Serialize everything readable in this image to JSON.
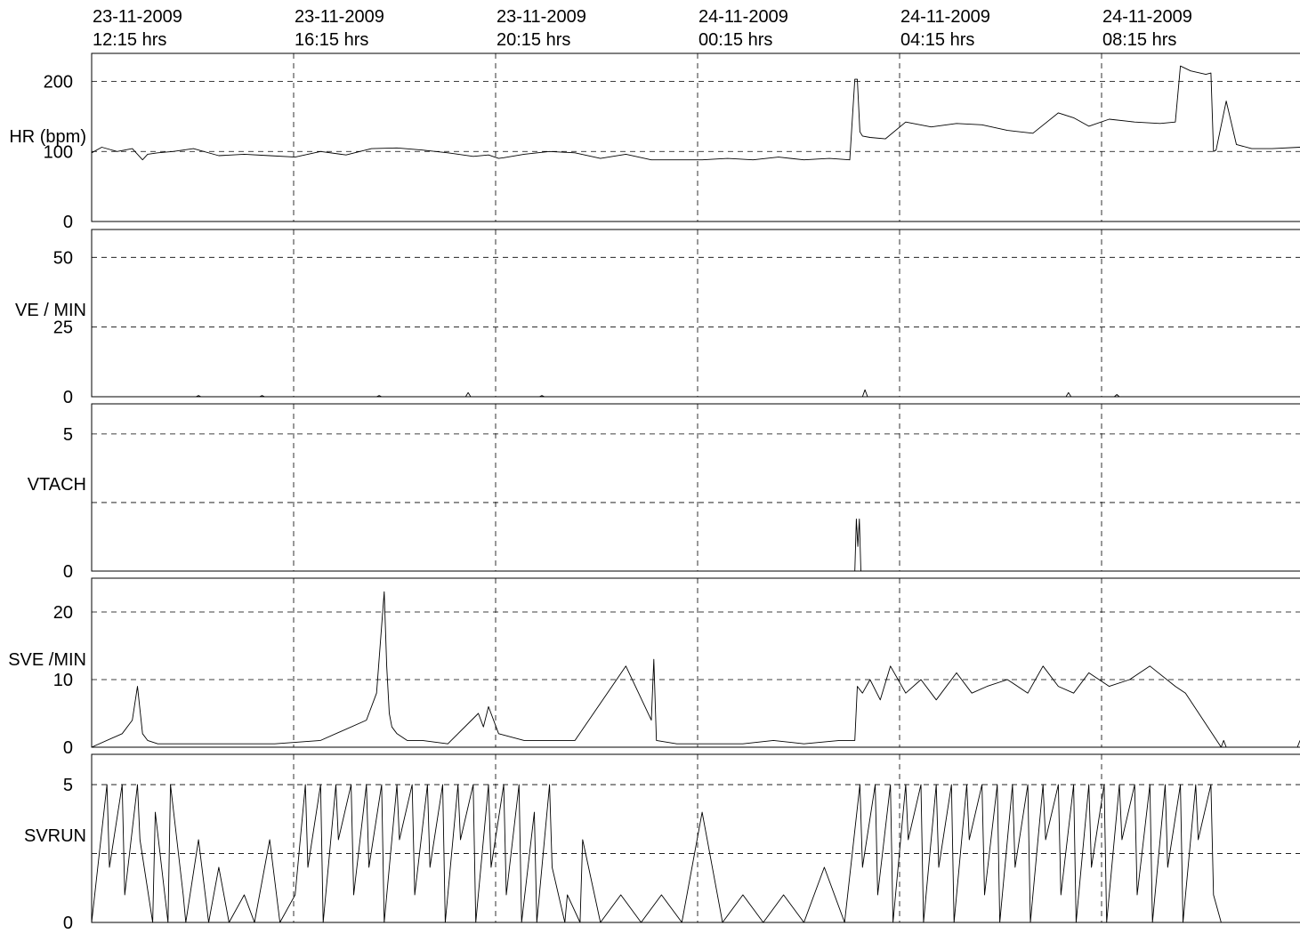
{
  "chart_data": {
    "type": "line",
    "time_axis": {
      "position": "top",
      "grid": "dashed vertical",
      "ticks": [
        {
          "date": "23-11-2009",
          "time": "12:15 hrs"
        },
        {
          "date": "23-11-2009",
          "time": "16:15 hrs"
        },
        {
          "date": "23-11-2009",
          "time": "20:15 hrs"
        },
        {
          "date": "24-11-2009",
          "time": "00:15 hrs"
        },
        {
          "date": "24-11-2009",
          "time": "04:15 hrs"
        },
        {
          "date": "24-11-2009",
          "time": "08:15 hrs"
        }
      ],
      "xlim_hours": [
        0,
        23.75
      ]
    },
    "panels": [
      {
        "label": "HR (bpm)",
        "ylim": [
          0,
          240
        ],
        "yticks": [
          0,
          100,
          200
        ],
        "grid": "dashed horizontal at 100, 200",
        "series": {
          "x_hours": [
            0,
            0.2,
            0.5,
            0.8,
            1.0,
            1.1,
            1.3,
            1.6,
            2.0,
            2.5,
            3.0,
            3.5,
            4.0,
            4.5,
            5.0,
            5.5,
            6.0,
            6.5,
            7.0,
            7.5,
            7.8,
            8.0,
            8.1,
            8.5,
            9.0,
            9.5,
            10.0,
            10.5,
            11.0,
            11.5,
            12.0,
            12.5,
            13.0,
            13.5,
            14.0,
            14.5,
            14.9,
            15.0,
            15.05,
            15.1,
            15.15,
            15.3,
            15.6,
            16.0,
            16.5,
            17.0,
            17.5,
            18.0,
            18.5,
            19.0,
            19.3,
            19.6,
            20.0,
            20.5,
            21.0,
            21.3,
            21.4,
            21.6,
            21.9,
            22.0,
            22.05,
            22.1,
            22.3,
            22.5,
            22.8,
            23.2,
            23.75
          ],
          "y": [
            98,
            106,
            100,
            104,
            88,
            96,
            98,
            100,
            104,
            94,
            96,
            94,
            92,
            100,
            95,
            104,
            105,
            102,
            98,
            93,
            95,
            90,
            91,
            96,
            100,
            98,
            90,
            96,
            88,
            88,
            88,
            90,
            88,
            92,
            88,
            90,
            88,
            203,
            203,
            128,
            122,
            120,
            118,
            142,
            135,
            140,
            138,
            130,
            126,
            155,
            148,
            136,
            146,
            142,
            140,
            142,
            222,
            215,
            210,
            212,
            100,
            102,
            172,
            110,
            104,
            104,
            106
          ]
        }
      },
      {
        "label": "VE / MIN",
        "ylim": [
          0,
          60
        ],
        "yticks": [
          0,
          25,
          50
        ],
        "grid": "dashed horizontal at 25, 50",
        "series": {
          "x_hours": [
            0,
            2.05,
            2.1,
            2.15,
            3.3,
            3.35,
            3.4,
            5.6,
            5.65,
            5.7,
            7.35,
            7.4,
            7.45,
            8.8,
            8.85,
            8.9,
            15.15,
            15.2,
            15.25,
            19.15,
            19.2,
            19.25,
            20.1,
            20.15,
            20.2,
            23.75
          ],
          "y": [
            0,
            0,
            0.4,
            0,
            0,
            0.4,
            0,
            0,
            0.4,
            0,
            0,
            1.5,
            0,
            0,
            0.4,
            0,
            0,
            2.5,
            0,
            0,
            1.5,
            0,
            0,
            0.8,
            0,
            0
          ]
        }
      },
      {
        "label": "VTACH",
        "ylim": [
          0,
          6.1
        ],
        "yticks": [
          0,
          5
        ],
        "grid": "dashed horizontal at 2.5, 5",
        "series": {
          "x_hours": [
            0,
            15.0,
            15.03,
            15.06,
            15.09,
            15.12,
            23.75
          ],
          "y": [
            0,
            0,
            1.9,
            0.9,
            1.9,
            0,
            0
          ]
        }
      },
      {
        "label": "SVE /MIN",
        "ylim": [
          0,
          25
        ],
        "yticks": [
          0,
          10,
          20
        ],
        "grid": "dashed horizontal at 10, 20",
        "series": {
          "x_hours": [
            0,
            0.6,
            0.8,
            0.9,
            1.0,
            1.1,
            1.3,
            2.0,
            2.8,
            3.6,
            4.5,
            5.4,
            5.6,
            5.75,
            5.8,
            5.85,
            5.9,
            6.0,
            6.2,
            6.5,
            7.0,
            7.6,
            7.7,
            7.8,
            8.0,
            8.5,
            9.0,
            9.5,
            10.5,
            11.0,
            11.05,
            11.1,
            11.5,
            12.2,
            12.8,
            13.4,
            14.0,
            14.7,
            15.0,
            15.05,
            15.15,
            15.3,
            15.5,
            15.7,
            16.0,
            16.3,
            16.6,
            17.0,
            17.3,
            17.6,
            18.0,
            18.4,
            18.7,
            19.0,
            19.3,
            19.6,
            20.0,
            20.4,
            20.8,
            21.3,
            21.5,
            22.2,
            22.25,
            22.3,
            23.7,
            23.75
          ],
          "y": [
            0,
            2,
            4,
            9,
            2,
            1,
            0.5,
            0.5,
            0.5,
            0.5,
            1,
            4,
            8,
            23,
            12,
            5,
            3,
            2,
            1,
            1,
            0.5,
            5,
            3,
            6,
            2,
            1,
            1,
            1,
            12,
            4,
            13,
            1,
            0.5,
            0.5,
            0.5,
            1,
            0.5,
            1,
            1,
            9,
            8,
            10,
            7,
            12,
            8,
            10,
            7,
            11,
            8,
            9,
            10,
            8,
            12,
            9,
            8,
            11,
            9,
            10,
            12,
            9,
            8,
            0,
            1,
            0,
            0,
            1
          ]
        }
      },
      {
        "label": "SVRUN",
        "ylim": [
          0,
          6.1
        ],
        "yticks": [
          0,
          5
        ],
        "grid": "dashed horizontal at 2.5, 5",
        "series": {
          "x_hours": [
            0,
            0.3,
            0.35,
            0.6,
            0.65,
            0.9,
            0.95,
            1.2,
            1.25,
            1.5,
            1.55,
            1.8,
            1.85,
            2.1,
            2.3,
            2.5,
            2.7,
            3.0,
            3.2,
            3.5,
            3.7,
            4.0,
            4.2,
            4.25,
            4.5,
            4.55,
            4.8,
            4.85,
            5.1,
            5.15,
            5.4,
            5.45,
            5.7,
            5.75,
            6.0,
            6.05,
            6.3,
            6.35,
            6.6,
            6.65,
            6.9,
            6.95,
            7.2,
            7.25,
            7.5,
            7.55,
            7.8,
            7.85,
            8.1,
            8.15,
            8.4,
            8.45,
            8.7,
            8.75,
            9.0,
            9.05,
            9.3,
            9.35,
            9.6,
            9.65,
            10.0,
            10.4,
            10.8,
            11.2,
            11.6,
            12.0,
            12.4,
            12.8,
            13.2,
            13.6,
            14.0,
            14.4,
            14.8,
            15.1,
            15.15,
            15.4,
            15.45,
            15.7,
            15.75,
            16.0,
            16.05,
            16.3,
            16.35,
            16.6,
            16.65,
            16.9,
            16.95,
            17.2,
            17.25,
            17.5,
            17.55,
            17.8,
            17.85,
            18.1,
            18.15,
            18.4,
            18.45,
            18.7,
            18.75,
            19.0,
            19.05,
            19.3,
            19.35,
            19.6,
            19.65,
            19.9,
            19.95,
            20.2,
            20.25,
            20.5,
            20.55,
            20.8,
            20.85,
            21.1,
            21.15,
            21.4,
            21.45,
            21.7,
            21.75,
            22.0,
            22.05,
            22.2,
            23.75
          ],
          "y": [
            0,
            5,
            2,
            5,
            1,
            5,
            3,
            0,
            4,
            0,
            5,
            1,
            0,
            3,
            0,
            2,
            0,
            1,
            0,
            3,
            0,
            1,
            5,
            2,
            5,
            0,
            5,
            3,
            5,
            1,
            5,
            2,
            5,
            0,
            5,
            3,
            5,
            1,
            5,
            2,
            5,
            0,
            5,
            3,
            5,
            0,
            5,
            2,
            5,
            1,
            5,
            0,
            4,
            0,
            5,
            2,
            0,
            1,
            0,
            3,
            0,
            1,
            0,
            1,
            0,
            4,
            0,
            1,
            0,
            1,
            0,
            2,
            0,
            5,
            2,
            5,
            1,
            5,
            0,
            5,
            3,
            5,
            0,
            5,
            2,
            5,
            0,
            5,
            3,
            5,
            1,
            5,
            0,
            5,
            2,
            5,
            0,
            5,
            3,
            5,
            1,
            5,
            0,
            5,
            2,
            5,
            0,
            5,
            3,
            5,
            1,
            5,
            0,
            5,
            2,
            5,
            0,
            5,
            3,
            5,
            1,
            0,
            0
          ]
        }
      }
    ]
  }
}
